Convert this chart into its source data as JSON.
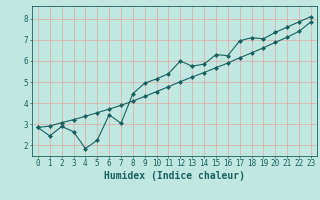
{
  "title": "",
  "xlabel": "Humidex (Indice chaleur)",
  "bg_color": "#c0e8e0",
  "line_color": "#1a6060",
  "grid_color": "#e89898",
  "xlim": [
    -0.5,
    23.5
  ],
  "ylim": [
    1.5,
    8.6
  ],
  "x_ticks": [
    0,
    1,
    2,
    3,
    4,
    5,
    6,
    7,
    8,
    9,
    10,
    11,
    12,
    13,
    14,
    15,
    16,
    17,
    18,
    19,
    20,
    21,
    22,
    23
  ],
  "y_ticks": [
    2,
    3,
    4,
    5,
    6,
    7,
    8
  ],
  "noisy_line_x": [
    0,
    1,
    2,
    3,
    4,
    5,
    6,
    7,
    8,
    9,
    10,
    11,
    12,
    13,
    14,
    15,
    16,
    17,
    18,
    19,
    20,
    21,
    22,
    23
  ],
  "noisy_line_y": [
    2.85,
    2.45,
    2.9,
    2.65,
    1.85,
    2.25,
    3.45,
    3.05,
    4.45,
    4.95,
    5.15,
    5.4,
    6.0,
    5.75,
    5.85,
    6.3,
    6.25,
    6.95,
    7.1,
    7.05,
    7.35,
    7.6,
    7.85,
    8.1
  ],
  "smooth_line_x": [
    0,
    1,
    2,
    3,
    4,
    5,
    6,
    7,
    8,
    9,
    10,
    11,
    12,
    13,
    14,
    15,
    16,
    17,
    18,
    19,
    20,
    21,
    22,
    23
  ],
  "smooth_line_y": [
    2.85,
    2.92,
    3.08,
    3.22,
    3.38,
    3.55,
    3.72,
    3.9,
    4.1,
    4.32,
    4.55,
    4.78,
    5.02,
    5.24,
    5.45,
    5.68,
    5.9,
    6.15,
    6.38,
    6.62,
    6.88,
    7.12,
    7.4,
    7.85
  ],
  "marker_size": 2.5,
  "line_width": 0.8,
  "xlabel_fontsize": 7,
  "tick_fontsize": 5.5
}
